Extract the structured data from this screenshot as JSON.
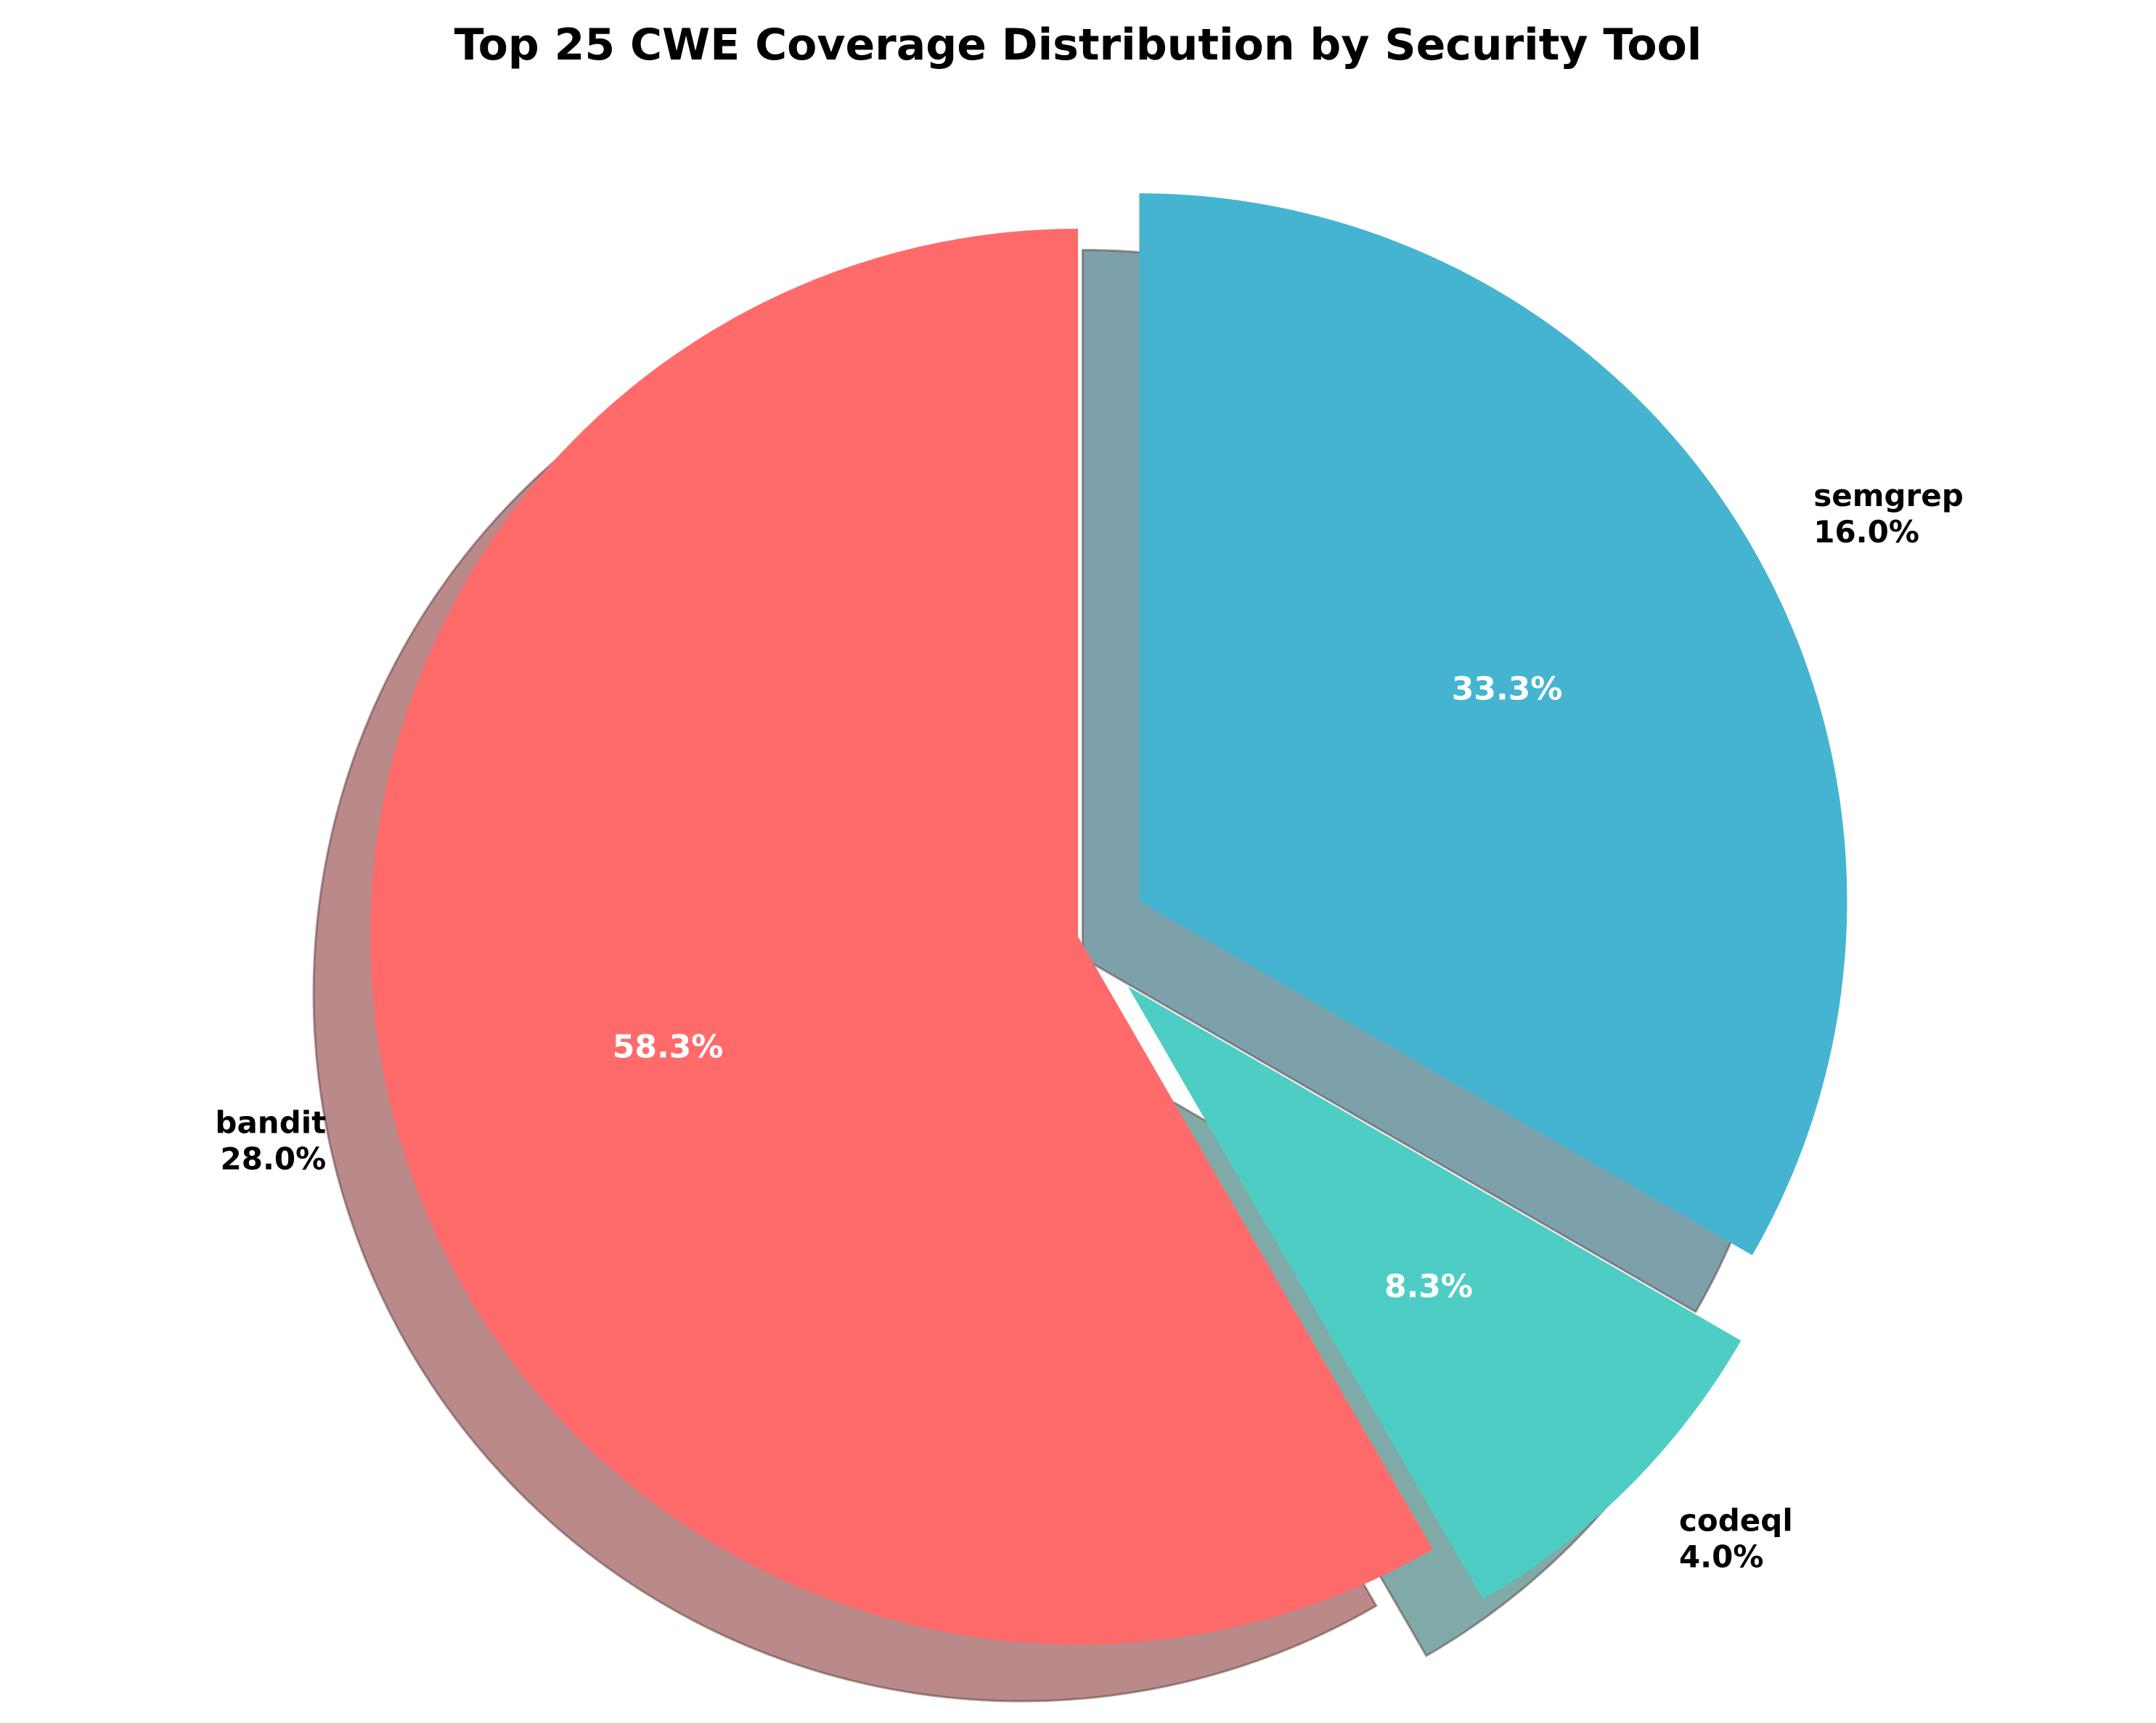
{
  "chart_data": {
    "type": "pie",
    "title": "Top 25 CWE Coverage Distribution by Security Tool",
    "labels": [
      "bandit",
      "codeql",
      "semgrep"
    ],
    "coverage_labels": [
      "28.0%",
      "4.0%",
      "16.0%"
    ],
    "values": [
      58.3,
      8.3,
      33.3
    ],
    "value_labels": [
      "58.3%",
      "8.3%",
      "33.3%"
    ],
    "colors": [
      "#FF6B6B",
      "#4ECDC4",
      "#45B4D1"
    ],
    "exploded": [
      false,
      true,
      true
    ],
    "shadow": true,
    "start_angle_deg": 90,
    "direction": "counterclockwise"
  }
}
